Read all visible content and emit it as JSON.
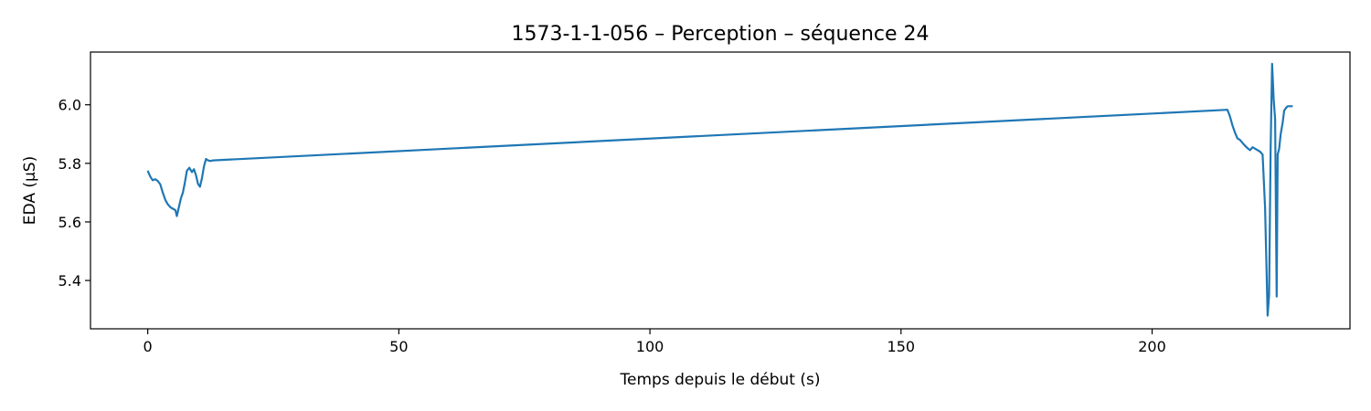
{
  "chart_data": {
    "type": "line",
    "title": "1573-1-1-056 – Perception – séquence 24",
    "xlabel": "Temps depuis le début (s)",
    "ylabel": "EDA (µS)",
    "xlim": [
      -11.4,
      239.4
    ],
    "ylim": [
      5.235,
      6.18
    ],
    "xticks": [
      0,
      50,
      100,
      150,
      200
    ],
    "yticks": [
      5.4,
      5.6,
      5.8,
      6.0
    ],
    "ytick_labels": [
      "5.4",
      "5.6",
      "5.8",
      "6.0"
    ],
    "grid": false,
    "line_color": "#1f77b4",
    "series": [
      {
        "x": [
          0,
          0.5,
          1.0,
          1.5,
          2.0,
          2.5,
          3.0,
          3.5,
          4.0,
          4.5,
          5.0,
          5.5,
          5.8,
          6.2,
          6.6,
          7.0,
          7.4,
          7.8,
          8.3,
          8.8,
          9.2,
          9.6,
          10.0,
          10.4,
          10.8,
          11.2,
          11.6,
          12.0,
          12.5,
          13.0,
          215.0,
          215.5,
          216.0,
          216.5,
          217.0,
          217.5,
          218.0,
          218.5,
          219.0,
          219.5,
          220.0,
          220.5,
          221.0,
          221.5,
          222.0,
          222.5,
          223.0,
          223.3,
          223.6,
          223.9,
          224.2,
          224.5,
          224.8,
          225.0,
          225.3,
          225.6,
          226.0,
          226.3,
          226.7,
          227.0,
          227.5,
          228.0
        ],
        "y": [
          5.775,
          5.755,
          5.742,
          5.746,
          5.74,
          5.728,
          5.7,
          5.675,
          5.66,
          5.65,
          5.645,
          5.64,
          5.62,
          5.65,
          5.68,
          5.7,
          5.735,
          5.775,
          5.785,
          5.77,
          5.78,
          5.76,
          5.73,
          5.72,
          5.75,
          5.79,
          5.815,
          5.81,
          5.808,
          5.81,
          5.983,
          5.96,
          5.93,
          5.905,
          5.885,
          5.88,
          5.87,
          5.86,
          5.852,
          5.845,
          5.855,
          5.85,
          5.845,
          5.84,
          5.83,
          5.65,
          5.28,
          5.35,
          5.85,
          6.14,
          6.02,
          5.95,
          5.345,
          5.83,
          5.85,
          5.9,
          5.94,
          5.98,
          5.99,
          5.995,
          5.995,
          5.995
        ]
      }
    ]
  }
}
